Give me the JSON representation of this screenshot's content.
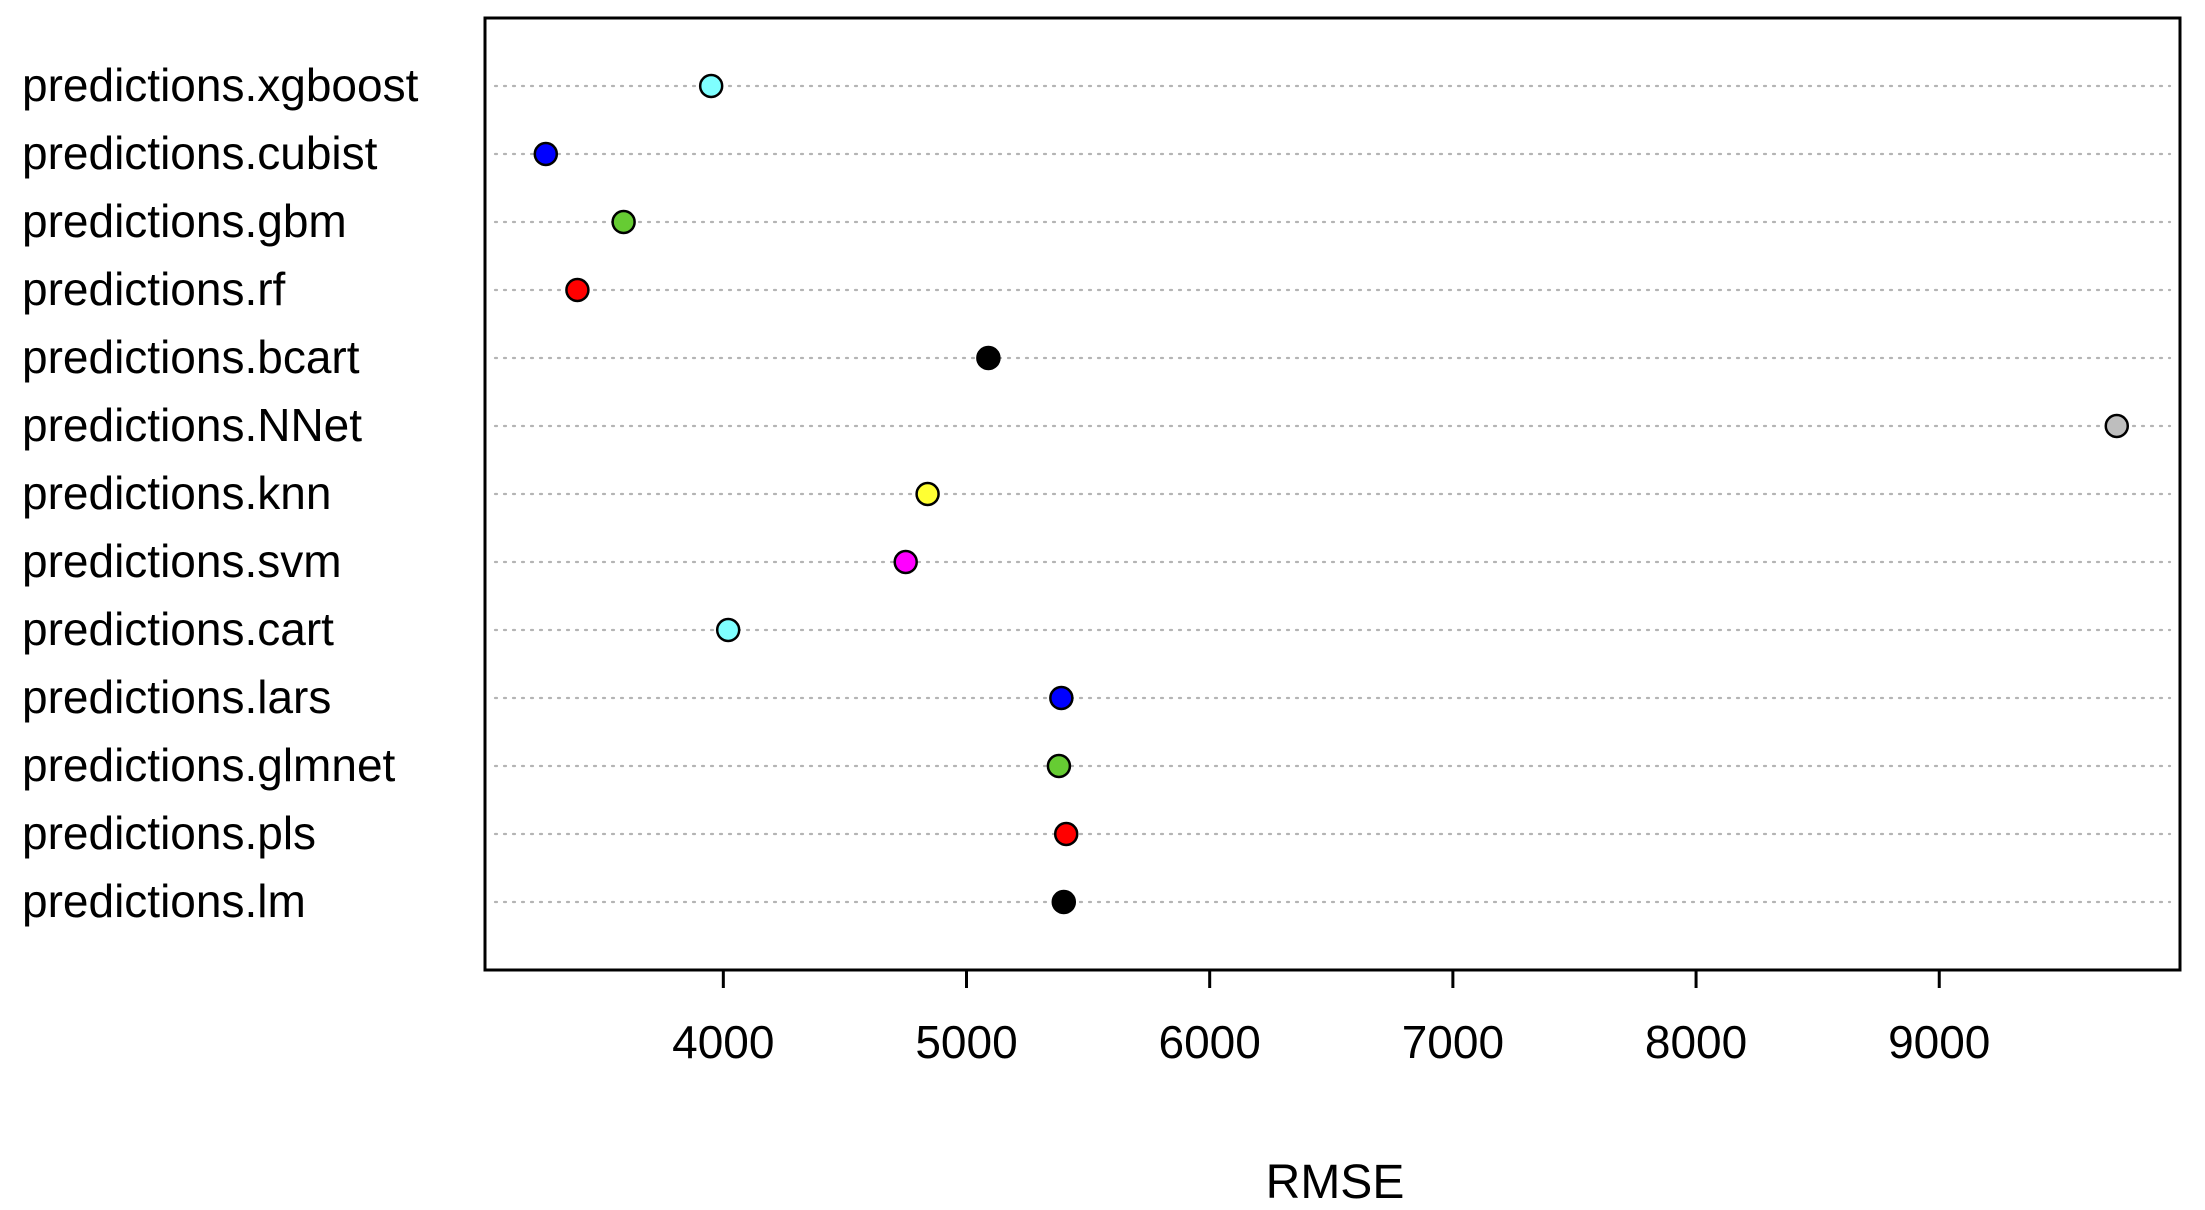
{
  "chart_data": {
    "type": "scatter",
    "subtype": "dotplot",
    "title": "",
    "xlabel": "RMSE",
    "ylabel": "",
    "xlim": [
      3020,
      9990
    ],
    "xticks": [
      4000,
      5000,
      6000,
      7000,
      8000,
      9000
    ],
    "xtick_labels": [
      "4000",
      "5000",
      "6000",
      "7000",
      "8000",
      "9000"
    ],
    "grid": "horizontal-dotted",
    "legend": "none",
    "categories": [
      "predictions.xgboost",
      "predictions.cubist",
      "predictions.gbm",
      "predictions.rf",
      "predictions.bcart",
      "predictions.NNet",
      "predictions.knn",
      "predictions.svm",
      "predictions.cart",
      "predictions.lars",
      "predictions.glmnet",
      "predictions.pls",
      "predictions.lm"
    ],
    "values": [
      3950,
      3270,
      3590,
      3400,
      5090,
      9730,
      4840,
      4750,
      4020,
      5390,
      5380,
      5410,
      5400
    ],
    "point_colors": [
      "#7fffff",
      "#0000ff",
      "#66cc33",
      "#ff0000",
      "#000000",
      "#bebebe",
      "#ffff33",
      "#ff00ff",
      "#7fffff",
      "#0000ff",
      "#66cc33",
      "#ff0000",
      "#000000"
    ]
  }
}
